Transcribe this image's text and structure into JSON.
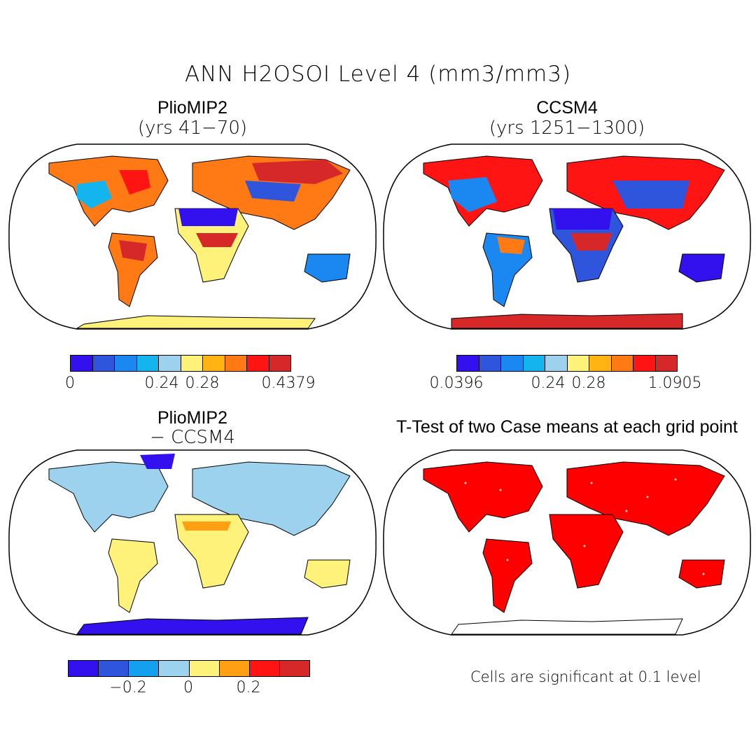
{
  "title": "ANN H2OSOI Level 4 (mm3/mm3)",
  "panels": {
    "top_left": {
      "title": "PlioMIP2",
      "subtitle": "(yrs 41−70)"
    },
    "top_right": {
      "title": "CCSM4",
      "subtitle": "(yrs 1251−1300)"
    },
    "bottom_left": {
      "title": "PlioMIP2",
      "subtitle": "− CCSM4"
    },
    "bottom_right": {
      "title": "T-Test of two Case means at each grid point",
      "note": "Cells are significant at 0.1 level"
    }
  },
  "colorbars": {
    "top_left": {
      "colors": [
        "#3311ee",
        "#2f55dd",
        "#1a88f0",
        "#14b4ee",
        "#9dd2ee",
        "#fff27a",
        "#ffb414",
        "#ff7a14",
        "#ff1414",
        "#d62828"
      ],
      "labels": [
        "0",
        "0.24",
        "0.28",
        "0.4379"
      ]
    },
    "top_right": {
      "colors": [
        "#3311ee",
        "#2f55dd",
        "#1a88f0",
        "#14b4ee",
        "#9dd2ee",
        "#fff27a",
        "#ffb414",
        "#ff7a14",
        "#ff1414",
        "#d62828"
      ],
      "labels": [
        "0.0396",
        "0.24",
        "0.28",
        "1.0905"
      ]
    },
    "bottom_left": {
      "colors": [
        "#3311ee",
        "#2f55dd",
        "#14a0ee",
        "#9dd2ee",
        "#fff27a",
        "#ffa014",
        "#ff1414",
        "#d62828"
      ],
      "labels": [
        "−0.2",
        "0",
        "0.2"
      ]
    }
  },
  "significance_color": "#ff0000"
}
